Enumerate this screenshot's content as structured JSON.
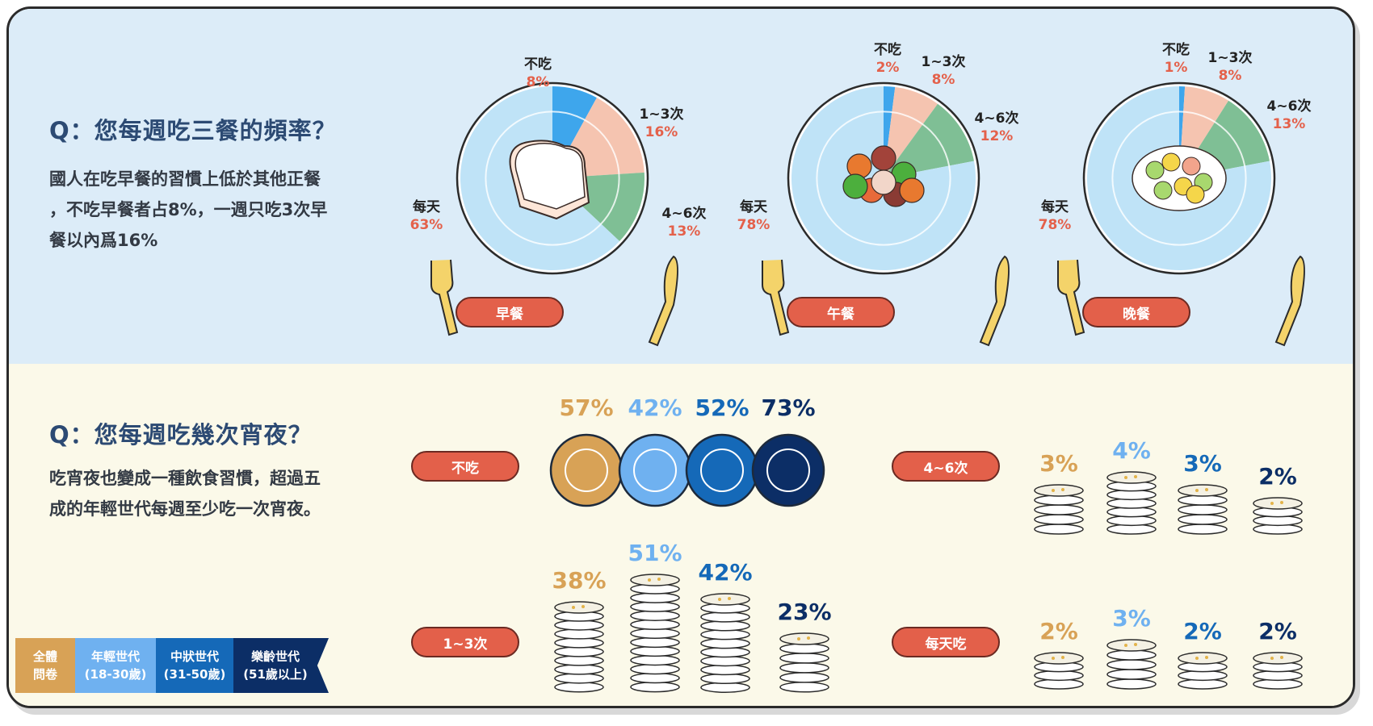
{
  "meals_section": {
    "question": "Q：您每週吃三餐的頻率？",
    "description_lines": [
      "國人在吃早餐的習慣上低於其他正餐",
      "，不吃早餐者占8%，一週只吃3次早",
      "餐以內爲16%"
    ]
  },
  "late_night_section": {
    "question": "Q：您每週吃幾次宵夜？",
    "description_lines": [
      "吃宵夜也變成一種飲食習慣，超過五",
      "成的年輕世代每週至少吃一次宵夜。"
    ]
  },
  "legend": [
    {
      "label_lines": [
        "全體",
        "問卷"
      ],
      "color": "#d8a256"
    },
    {
      "label_lines": [
        "年輕世代",
        "(18-30歲)"
      ],
      "color": "#6fb1f0"
    },
    {
      "label_lines": [
        "中狀世代",
        "(31-50歲)"
      ],
      "color": "#1569b8"
    },
    {
      "label_lines": [
        "樂齡世代",
        "(51歲以上)"
      ],
      "color": "#0c2e66"
    }
  ],
  "colors": {
    "slice_never": "#3ea6ec",
    "slice_1_3": "#f5c4b0",
    "slice_4_6": "#7fbf95",
    "slice_daily": "#bfe3f7",
    "accent_red": "#e3604a"
  },
  "chart_data": [
    {
      "type": "pie",
      "meal": "早餐",
      "slices": [
        {
          "label": "不吃",
          "value": 8,
          "display": "8%"
        },
        {
          "label": "1~3次",
          "value": 16,
          "display": "16%"
        },
        {
          "label": "4~6次",
          "value": 13,
          "display": "13%"
        },
        {
          "label": "每天",
          "value": 63,
          "display": "63%"
        }
      ]
    },
    {
      "type": "pie",
      "meal": "午餐",
      "slices": [
        {
          "label": "不吃",
          "value": 2,
          "display": "2%"
        },
        {
          "label": "1~3次",
          "value": 8,
          "display": "8%"
        },
        {
          "label": "4~6次",
          "value": 12,
          "display": "12%"
        },
        {
          "label": "每天",
          "value": 78,
          "display": "78%"
        }
      ]
    },
    {
      "type": "pie",
      "meal": "晚餐",
      "slices": [
        {
          "label": "不吃",
          "value": 1,
          "display": "1%"
        },
        {
          "label": "1~3次",
          "value": 8,
          "display": "8%"
        },
        {
          "label": "4~6次",
          "value": 13,
          "display": "13%"
        },
        {
          "label": "每天",
          "value": 78,
          "display": "78%"
        }
      ]
    },
    {
      "type": "bar",
      "question": "Q：您每週吃幾次宵夜？",
      "categories": [
        "不吃",
        "1~3次",
        "4~6次",
        "每天吃"
      ],
      "series": [
        {
          "name": "全體問卷",
          "values": [
            57,
            38,
            3,
            2
          ],
          "display": [
            "57%",
            "38%",
            "3%",
            "2%"
          ]
        },
        {
          "name": "年輕世代",
          "values": [
            42,
            51,
            4,
            3
          ],
          "display": [
            "42%",
            "51%",
            "4%",
            "3%"
          ]
        },
        {
          "name": "中狀世代",
          "values": [
            52,
            42,
            3,
            2
          ],
          "display": [
            "52%",
            "42%",
            "3%",
            "2%"
          ]
        },
        {
          "name": "樂齡世代",
          "values": [
            73,
            23,
            2,
            2
          ],
          "display": [
            "73%",
            "23%",
            "2%",
            "2%"
          ]
        }
      ]
    }
  ]
}
